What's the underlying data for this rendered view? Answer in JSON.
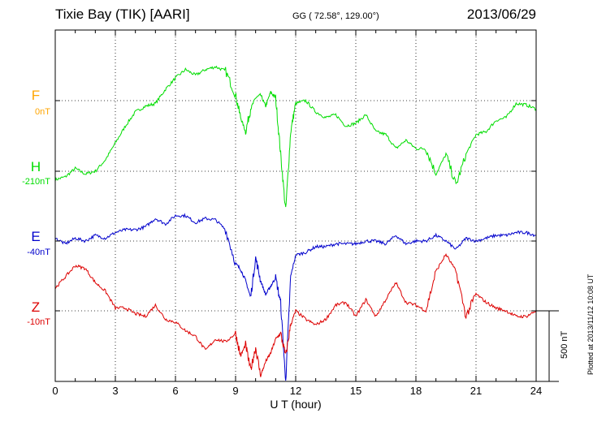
{
  "header": {
    "station": "Tixie Bay (TIK)  [AARI]",
    "coords": "GG ( 72.58°, 129.00°)",
    "date": "2013/06/29"
  },
  "plotted": "Plotted at 2013/11/12 10:08 UT",
  "chart_data": {
    "type": "line",
    "title": "Tixie Bay (TIK)  [AARI]",
    "xlabel": "U T (hour)",
    "xlim": [
      0,
      24
    ],
    "x_ticks": [
      "0",
      "3",
      "6",
      "9",
      "12",
      "15",
      "18",
      "21",
      "24"
    ],
    "scale_bar_label": "500 nT",
    "grid": true,
    "colors": {
      "F": "#ffa500",
      "H": "#00dd00",
      "E": "#0000cc",
      "Z": "#dd0000"
    },
    "series": [
      {
        "name": "F",
        "baseline": "0nT",
        "color": "#ffa500",
        "x": [],
        "y": []
      },
      {
        "name": "H",
        "baseline": "-210nT",
        "color": "#00dd00",
        "x": [
          0,
          0.5,
          1,
          1.5,
          2,
          2.5,
          3,
          3.5,
          4,
          4.5,
          5,
          5.5,
          6,
          6.5,
          7,
          7.5,
          8,
          8.5,
          9,
          9.25,
          9.5,
          9.75,
          10,
          10.25,
          10.5,
          10.75,
          11,
          11.25,
          11.5,
          11.75,
          12,
          12.5,
          13,
          13.5,
          14,
          14.5,
          15,
          15.5,
          16,
          16.5,
          17,
          17.5,
          18,
          18.5,
          19,
          19.5,
          20,
          20.5,
          21,
          21.5,
          22,
          22.5,
          23,
          23.5,
          24
        ],
        "y": [
          -60,
          -40,
          20,
          -20,
          0,
          80,
          200,
          320,
          420,
          460,
          480,
          580,
          660,
          720,
          680,
          720,
          740,
          710,
          540,
          380,
          280,
          440,
          520,
          540,
          460,
          560,
          520,
          120,
          -280,
          280,
          480,
          500,
          420,
          380,
          400,
          320,
          340,
          400,
          280,
          260,
          160,
          220,
          160,
          160,
          -20,
          120,
          -100,
          120,
          260,
          280,
          360,
          380,
          480,
          470,
          440
        ]
      },
      {
        "name": "E",
        "baseline": "-40nT",
        "color": "#0000cc",
        "x": [
          0,
          0.5,
          1,
          1.5,
          2,
          2.5,
          3,
          3.5,
          4,
          4.5,
          5,
          5.5,
          6,
          6.5,
          7,
          7.5,
          8,
          8.5,
          9,
          9.25,
          9.5,
          9.75,
          10,
          10.25,
          10.5,
          10.75,
          11,
          11.25,
          11.5,
          11.75,
          12,
          12.5,
          13,
          13.5,
          14,
          14.5,
          15,
          15.5,
          16,
          16.5,
          17,
          17.5,
          18,
          18.5,
          19,
          19.5,
          20,
          20.5,
          21,
          21.5,
          22,
          22.5,
          23,
          23.5,
          24
        ],
        "y": [
          20,
          -20,
          20,
          0,
          40,
          20,
          60,
          80,
          80,
          100,
          160,
          120,
          180,
          180,
          130,
          160,
          150,
          80,
          -160,
          -200,
          -280,
          -400,
          -120,
          -280,
          -380,
          -320,
          -260,
          -440,
          -1000,
          -250,
          -100,
          -80,
          -40,
          -40,
          -20,
          -20,
          -20,
          0,
          0,
          -20,
          40,
          -20,
          0,
          0,
          40,
          0,
          -60,
          20,
          0,
          20,
          40,
          40,
          60,
          60,
          40
        ]
      },
      {
        "name": "Z",
        "baseline": "-10nT",
        "color": "#dd0000",
        "x": [
          0,
          0.5,
          1,
          1.5,
          2,
          2.5,
          3,
          3.5,
          4,
          4.5,
          5,
          5.5,
          6,
          6.5,
          7,
          7.5,
          8,
          8.5,
          9,
          9.25,
          9.5,
          9.75,
          10,
          10.25,
          10.5,
          10.75,
          11,
          11.25,
          11.5,
          11.75,
          12,
          12.5,
          13,
          13.5,
          14,
          14.5,
          15,
          15.5,
          16,
          16.5,
          17,
          17.5,
          18,
          18.5,
          19,
          19.5,
          20,
          20.5,
          21,
          21.5,
          22,
          22.5,
          23,
          23.5,
          24
        ],
        "y": [
          160,
          240,
          320,
          300,
          200,
          140,
          20,
          20,
          -20,
          -40,
          40,
          -60,
          -80,
          -140,
          -180,
          -280,
          -200,
          -220,
          -160,
          -320,
          -240,
          -420,
          -260,
          -460,
          -360,
          -300,
          -200,
          -160,
          -320,
          -100,
          0,
          -60,
          -100,
          -60,
          40,
          60,
          -40,
          80,
          -40,
          80,
          200,
          60,
          40,
          0,
          280,
          400,
          280,
          -40,
          120,
          60,
          20,
          0,
          -40,
          -40,
          0
        ]
      }
    ]
  }
}
